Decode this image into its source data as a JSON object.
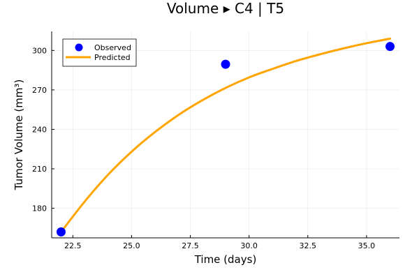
{
  "chart_data": {
    "type": "line",
    "title": "Volume ▸ C4 | T5",
    "xlabel": "Time (days)",
    "ylabel": "Tumor Volume (mm³)",
    "xlim": [
      21.6,
      36.4
    ],
    "ylim": [
      157.5,
      314.5
    ],
    "xticks": [
      22.5,
      25.0,
      27.5,
      30.0,
      32.5,
      35.0
    ],
    "xtick_labels": [
      "22.5",
      "25.0",
      "27.5",
      "30.0",
      "32.5",
      "35.0"
    ],
    "yticks": [
      180,
      210,
      240,
      270,
      300
    ],
    "ytick_labels": [
      "180",
      "210",
      "240",
      "270",
      "300"
    ],
    "grid": true,
    "legend_position": "top-left",
    "series": [
      {
        "name": "Observed",
        "kind": "scatter",
        "color": "#0000ff",
        "x": [
          22,
          29,
          36
        ],
        "y": [
          162,
          289.5,
          303
        ]
      },
      {
        "name": "Predicted",
        "kind": "line",
        "color": "#ffa500",
        "x": [
          22,
          23,
          24,
          25,
          26,
          27,
          28,
          29,
          30,
          31,
          32,
          33,
          34,
          35,
          36
        ],
        "y": [
          162,
          185,
          205.5,
          223,
          238,
          251,
          262,
          271.5,
          279.5,
          286,
          292,
          297,
          301.5,
          305.5,
          309
        ]
      }
    ]
  }
}
